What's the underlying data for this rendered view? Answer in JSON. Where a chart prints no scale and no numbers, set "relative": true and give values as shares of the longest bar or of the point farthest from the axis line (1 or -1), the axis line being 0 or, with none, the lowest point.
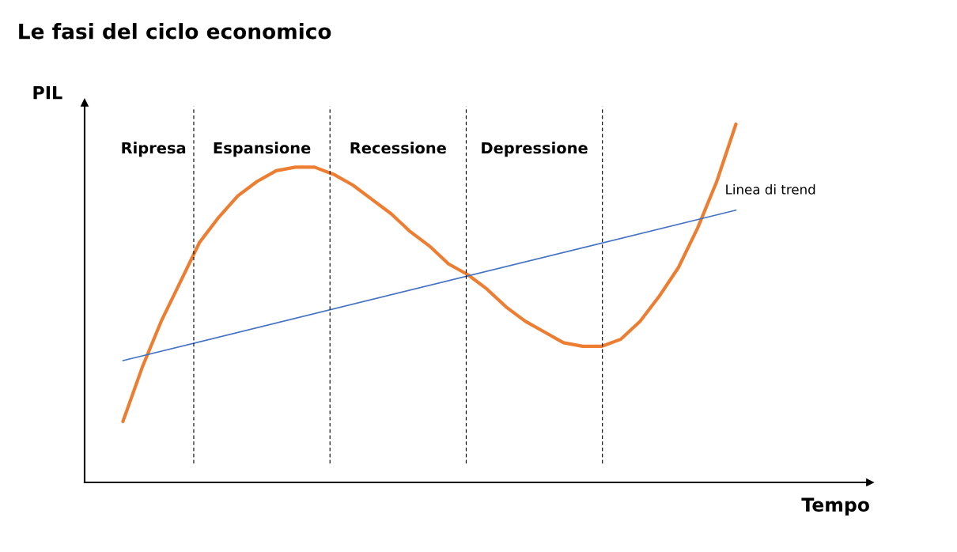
{
  "chart_data": {
    "type": "line",
    "title": "Le fasi del ciclo economico",
    "xlabel": "Tempo",
    "ylabel": "PIL",
    "relative": true,
    "categories": [
      null,
      null,
      null,
      null,
      null,
      null,
      null,
      null,
      null,
      null,
      null,
      null,
      null,
      null,
      null,
      null,
      null,
      null,
      null,
      null,
      null,
      null,
      null,
      null,
      null,
      null,
      null,
      null,
      null,
      null,
      null,
      null,
      null
    ],
    "series": [
      {
        "color": "#ed7d31",
        "values": [
          0.17,
          0.32,
          0.45,
          0.56,
          0.67,
          0.74,
          0.8,
          0.84,
          0.87,
          0.88,
          0.88,
          0.86,
          0.83,
          0.79,
          0.75,
          0.7,
          0.66,
          0.61,
          0.58,
          0.54,
          0.49,
          0.45,
          0.42,
          0.39,
          0.38,
          0.38,
          0.4,
          0.45,
          0.52,
          0.6,
          0.71,
          0.84,
          1
        ]
      },
      {
        "color": "#4472c4",
        "values": [
          0.34,
          null,
          null,
          null,
          null,
          null,
          null,
          null,
          null,
          null,
          null,
          null,
          null,
          null,
          null,
          null,
          null,
          null,
          null,
          null,
          null,
          null,
          null,
          null,
          null,
          null,
          null,
          null,
          null,
          null,
          null,
          null,
          0.76
        ]
      }
    ],
    "annotations": [
      "Ripresa",
      "Espansione",
      "Recessione",
      "Depressione",
      "Linea di trend"
    ],
    "grid": false,
    "legend": false,
    "marker": "none",
    "line_style": "solid"
  }
}
